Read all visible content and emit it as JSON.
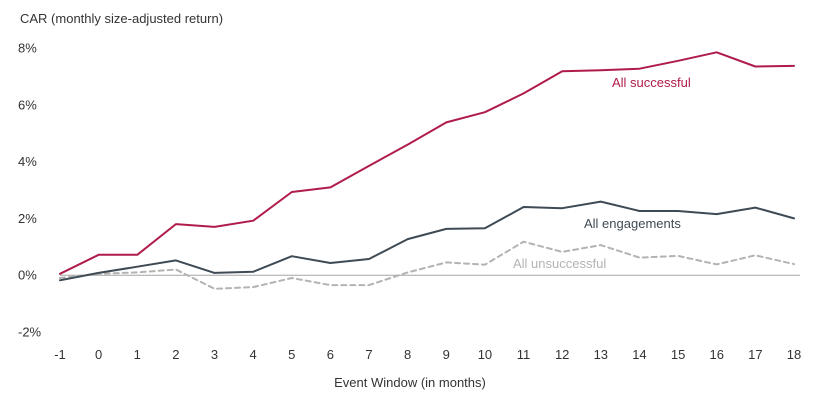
{
  "chart_data": {
    "type": "line",
    "ylabel": "CAR (monthly size-adjusted return)",
    "xlabel": "Event Window (in months)",
    "x": [
      -1,
      0,
      1,
      2,
      3,
      4,
      5,
      6,
      7,
      8,
      9,
      10,
      11,
      12,
      13,
      14,
      15,
      16,
      17,
      18
    ],
    "ylim": [
      -2,
      8
    ],
    "y_ticks": [
      -2,
      0,
      2,
      4,
      6,
      8
    ],
    "y_tick_labels": [
      "-2%",
      "0%",
      "2%",
      "4%",
      "6%",
      "8%"
    ],
    "x_tick_labels": [
      "-1",
      "0",
      "1",
      "2",
      "3",
      "4",
      "5",
      "6",
      "7",
      "8",
      "9",
      "10",
      "11",
      "12",
      "13",
      "14",
      "15",
      "16",
      "17",
      "18"
    ],
    "grid": false,
    "legend": "inline labels",
    "series": [
      {
        "name": "All successful",
        "color": "#b01c4a",
        "style": "solid",
        "values": [
          0.05,
          0.72,
          0.72,
          1.8,
          1.7,
          1.92,
          2.93,
          3.09,
          3.85,
          4.6,
          5.38,
          5.74,
          6.4,
          7.18,
          7.22,
          7.27,
          7.55,
          7.85,
          7.35,
          7.37
        ]
      },
      {
        "name": "All engagements",
        "color": "#3e4a54",
        "style": "solid",
        "values": [
          -0.18,
          0.08,
          0.3,
          0.52,
          0.08,
          0.12,
          0.67,
          0.43,
          0.57,
          1.27,
          1.63,
          1.65,
          2.4,
          2.36,
          2.59,
          2.26,
          2.26,
          2.15,
          2.38,
          2.0
        ]
      },
      {
        "name": "All unsuccessful",
        "color": "#b3b3b3",
        "style": "dashed",
        "values": [
          -0.1,
          0.05,
          0.1,
          0.2,
          -0.48,
          -0.42,
          -0.1,
          -0.35,
          -0.35,
          0.1,
          0.45,
          0.37,
          1.18,
          0.82,
          1.06,
          0.62,
          0.68,
          0.38,
          0.7,
          0.39
        ]
      }
    ]
  }
}
